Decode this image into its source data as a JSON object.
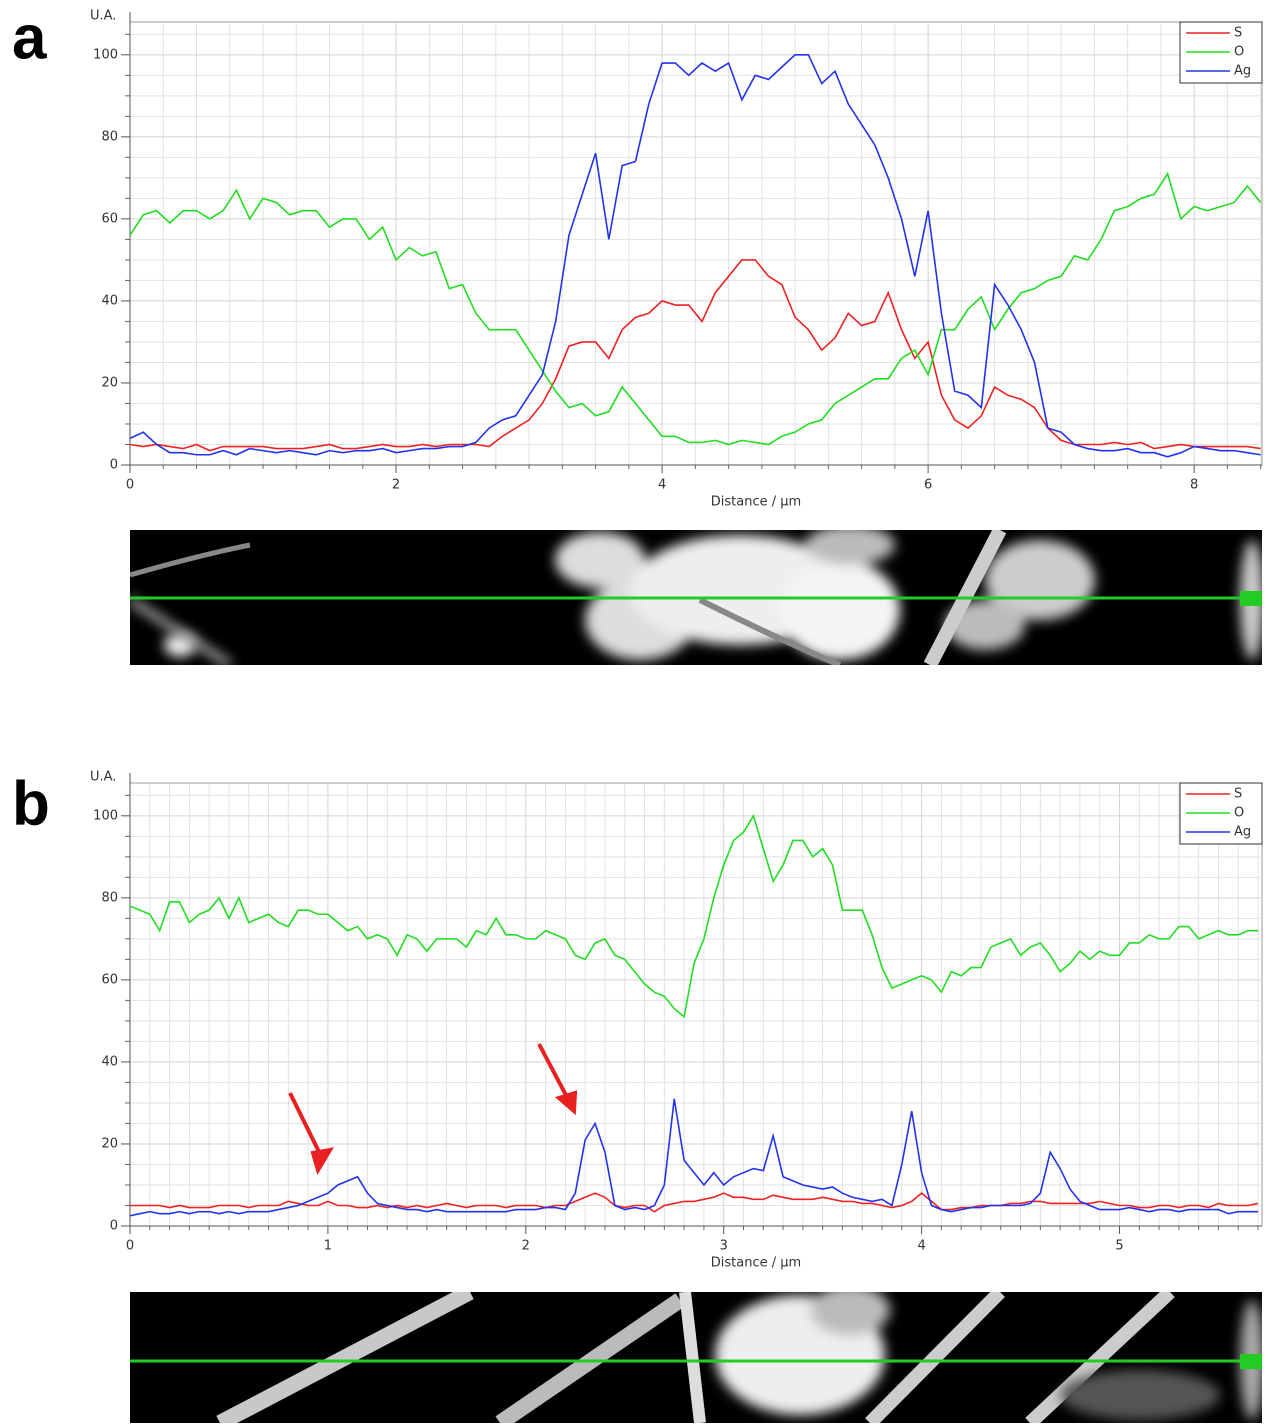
{
  "chart_data": [
    {
      "type": "line",
      "panel": "a",
      "y_label": "U.A.",
      "x_label": "Distance / µm",
      "xlim": [
        0,
        8.51
      ],
      "ylim": [
        0,
        108
      ],
      "xticks": [
        0,
        2,
        4,
        6,
        8
      ],
      "yticks": [
        0,
        20,
        40,
        60,
        80,
        100
      ],
      "grid": true,
      "legend": "upper right",
      "x": [
        0,
        0.1,
        0.2,
        0.3,
        0.4,
        0.5,
        0.6,
        0.7,
        0.8,
        0.9,
        1,
        1.1,
        1.2,
        1.3,
        1.4,
        1.5,
        1.6,
        1.7,
        1.8,
        1.9,
        2,
        2.1,
        2.2,
        2.3,
        2.4,
        2.5,
        2.6,
        2.7,
        2.8,
        2.9,
        3,
        3.1,
        3.2,
        3.3,
        3.4,
        3.5,
        3.6,
        3.7,
        3.8,
        3.9,
        4,
        4.1,
        4.2,
        4.3,
        4.4,
        4.5,
        4.6,
        4.7,
        4.8,
        4.9,
        5,
        5.1,
        5.2,
        5.3,
        5.4,
        5.5,
        5.6,
        5.7,
        5.8,
        5.9,
        6,
        6.1,
        6.2,
        6.3,
        6.4,
        6.5,
        6.6,
        6.7,
        6.8,
        6.9,
        7,
        7.1,
        7.2,
        7.3,
        7.4,
        7.5,
        7.6,
        7.7,
        7.8,
        7.9,
        8,
        8.1,
        8.2,
        8.3,
        8.4,
        8.5
      ],
      "series": [
        {
          "name": "S",
          "color": "#ee2222",
          "values": [
            5,
            4.5,
            5,
            4.5,
            4,
            5,
            3.5,
            4.5,
            4.5,
            4.5,
            4.5,
            4,
            4,
            4,
            4.5,
            5,
            4,
            4,
            4.5,
            5,
            4.5,
            4.5,
            5,
            4.5,
            5,
            5,
            5,
            4.5,
            7,
            9,
            11,
            15,
            21,
            29,
            30,
            30,
            26,
            33,
            36,
            37,
            40,
            39,
            39,
            35,
            42,
            46,
            50,
            50,
            46,
            44,
            36,
            33,
            28,
            31,
            37,
            34,
            35,
            42,
            33,
            26,
            30,
            17,
            11,
            9,
            12,
            19,
            17,
            16,
            14,
            9,
            6,
            5,
            5,
            5,
            5.5,
            5,
            5.5,
            4,
            4.5,
            5,
            4.5,
            4.5,
            4.5,
            4.5,
            4.5,
            4
          ]
        },
        {
          "name": "O",
          "color": "#22dd22",
          "values": [
            56,
            61,
            62,
            59,
            62,
            62,
            60,
            62,
            67,
            60,
            65,
            64,
            61,
            62,
            62,
            58,
            60,
            60,
            55,
            58,
            50,
            53,
            51,
            52,
            43,
            44,
            37,
            33,
            33,
            33,
            28,
            23,
            18,
            14,
            15,
            12,
            13,
            19,
            15,
            11,
            7,
            7,
            5.5,
            5.5,
            6,
            5,
            6,
            5.5,
            5,
            7,
            8,
            10,
            11,
            15,
            17,
            19,
            21,
            21,
            26,
            28,
            22,
            33,
            33,
            38,
            41,
            33,
            38,
            42,
            43,
            45,
            46,
            51,
            50,
            55,
            62,
            63,
            65,
            66,
            71,
            60,
            63,
            62,
            63,
            64,
            68,
            64
          ]
        },
        {
          "name": "Ag",
          "color": "#2233ee",
          "values": [
            6.5,
            8,
            5,
            3,
            3,
            2.5,
            2.5,
            3.5,
            2.5,
            4,
            3.5,
            3,
            3.5,
            3,
            2.5,
            3.5,
            3,
            3.5,
            3.5,
            4,
            3,
            3.5,
            4,
            4,
            4.5,
            4.5,
            5.5,
            9,
            11,
            12,
            17,
            22,
            35,
            56,
            66,
            76,
            55,
            73,
            74,
            88,
            98,
            98,
            95,
            98,
            96,
            98,
            89,
            95,
            94,
            97,
            100,
            100,
            93,
            96,
            88,
            83,
            78,
            70,
            60,
            46,
            62,
            37,
            18,
            17,
            14,
            44,
            39,
            33,
            25,
            9,
            8,
            5,
            4,
            3.5,
            3.5,
            4,
            3,
            3,
            2,
            3,
            4.5,
            4,
            3.5,
            3.5,
            3,
            2.5
          ]
        }
      ]
    },
    {
      "type": "line",
      "panel": "b",
      "y_label": "U.A.",
      "x_label": "Distance / µm",
      "xlim": [
        0,
        5.72
      ],
      "ylim": [
        0,
        108
      ],
      "xticks": [
        0,
        1,
        2,
        3,
        4,
        5
      ],
      "yticks": [
        0,
        20,
        40,
        60,
        80,
        100
      ],
      "grid": true,
      "legend": "upper right",
      "x": [
        0,
        0.05,
        0.1,
        0.15,
        0.2,
        0.25,
        0.3,
        0.35,
        0.4,
        0.45,
        0.5,
        0.55,
        0.6,
        0.65,
        0.7,
        0.75,
        0.8,
        0.85,
        0.9,
        0.95,
        1,
        1.05,
        1.1,
        1.15,
        1.2,
        1.25,
        1.3,
        1.35,
        1.4,
        1.45,
        1.5,
        1.55,
        1.6,
        1.65,
        1.7,
        1.75,
        1.8,
        1.85,
        1.9,
        1.95,
        2,
        2.05,
        2.1,
        2.15,
        2.2,
        2.25,
        2.3,
        2.35,
        2.4,
        2.45,
        2.5,
        2.55,
        2.6,
        2.65,
        2.7,
        2.75,
        2.8,
        2.85,
        2.9,
        2.95,
        3,
        3.05,
        3.1,
        3.15,
        3.2,
        3.25,
        3.3,
        3.35,
        3.4,
        3.45,
        3.5,
        3.55,
        3.6,
        3.65,
        3.7,
        3.75,
        3.8,
        3.85,
        3.9,
        3.95,
        4,
        4.05,
        4.1,
        4.15,
        4.2,
        4.25,
        4.3,
        4.35,
        4.4,
        4.45,
        4.5,
        4.55,
        4.6,
        4.65,
        4.7,
        4.75,
        4.8,
        4.85,
        4.9,
        4.95,
        5,
        5.05,
        5.1,
        5.15,
        5.2,
        5.25,
        5.3,
        5.35,
        5.4,
        5.45,
        5.5,
        5.55,
        5.6,
        5.65,
        5.7
      ],
      "series": [
        {
          "name": "S",
          "color": "#ee2222",
          "values": [
            5,
            5,
            5,
            5,
            4.5,
            5,
            4.5,
            4.5,
            4.5,
            5,
            5,
            5,
            4.5,
            5,
            5,
            5,
            6,
            5.5,
            5,
            5,
            6,
            5,
            5,
            4.5,
            4.5,
            5,
            4.5,
            5,
            4.5,
            5,
            4.5,
            5,
            5.5,
            5,
            4.5,
            5,
            5,
            5,
            4.5,
            5,
            5,
            5,
            4.5,
            5,
            5,
            6,
            7,
            8,
            7,
            5,
            4.5,
            5,
            5,
            3.5,
            5,
            5.5,
            6,
            6,
            6.5,
            7,
            8,
            7,
            7,
            6.5,
            6.5,
            7.5,
            7,
            6.5,
            6.5,
            6.5,
            7,
            6.5,
            6,
            6,
            5.5,
            5.5,
            5,
            4.5,
            5,
            6,
            8,
            6,
            4,
            4,
            4.5,
            4.5,
            5,
            5,
            5,
            5.5,
            5.5,
            6,
            6,
            5.5,
            5.5,
            5.5,
            5.5,
            5.5,
            6,
            5.5,
            5,
            5,
            4.5,
            4.5,
            5,
            5,
            4.5,
            5,
            5,
            4.5,
            5.5,
            5,
            5,
            5,
            5.5
          ]
        },
        {
          "name": "O",
          "color": "#22dd22",
          "values": [
            78,
            77,
            76,
            72,
            79,
            79,
            74,
            76,
            77,
            80,
            75,
            80,
            74,
            75,
            76,
            74,
            73,
            77,
            77,
            76,
            76,
            74,
            72,
            73,
            70,
            71,
            70,
            66,
            71,
            70,
            67,
            70,
            70,
            70,
            68,
            72,
            71,
            75,
            71,
            71,
            70,
            70,
            72,
            71,
            70,
            66,
            65,
            69,
            70,
            66,
            65,
            62,
            59,
            57,
            56,
            53,
            51,
            64,
            70,
            80,
            88,
            94,
            96,
            100,
            92,
            84,
            88,
            94,
            94,
            90,
            92,
            88,
            77,
            77,
            77,
            71,
            63,
            58,
            59,
            60,
            61,
            60,
            57,
            62,
            61,
            63,
            63,
            68,
            69,
            70,
            66,
            68,
            69,
            66,
            62,
            64,
            67,
            65,
            67,
            66,
            66,
            69,
            69,
            71,
            70,
            70,
            73,
            73,
            70,
            71,
            72,
            71,
            71,
            72,
            72
          ]
        },
        {
          "name": "Ag",
          "color": "#2233ee",
          "values": [
            2.5,
            3,
            3.5,
            3,
            3,
            3.5,
            3,
            3.5,
            3.5,
            3,
            3.5,
            3,
            3.5,
            3.5,
            3.5,
            4,
            4.5,
            5,
            6,
            7,
            8,
            10,
            11,
            12,
            8,
            5.5,
            5,
            4.5,
            4,
            4,
            3.5,
            4,
            3.5,
            3.5,
            3.5,
            3.5,
            3.5,
            3.5,
            3.5,
            4,
            4,
            4,
            4.5,
            4.5,
            4,
            8,
            21,
            25,
            18,
            5,
            4,
            4.5,
            4,
            5,
            10,
            31,
            16,
            13,
            10,
            13,
            10,
            12,
            13,
            14,
            13.5,
            22,
            12,
            11,
            10,
            9.5,
            9,
            9.5,
            8,
            7,
            6.5,
            6,
            6.5,
            5,
            15,
            28,
            13,
            5,
            4,
            3.5,
            4,
            4.5,
            4.5,
            5,
            5,
            5,
            5,
            5.5,
            8,
            18,
            14,
            9,
            6,
            5,
            4,
            4,
            4,
            4.5,
            4,
            3.5,
            4,
            4,
            3.5,
            4,
            4,
            4,
            4,
            3,
            3.5,
            3.5,
            3.5
          ]
        }
      ]
    }
  ]
}
